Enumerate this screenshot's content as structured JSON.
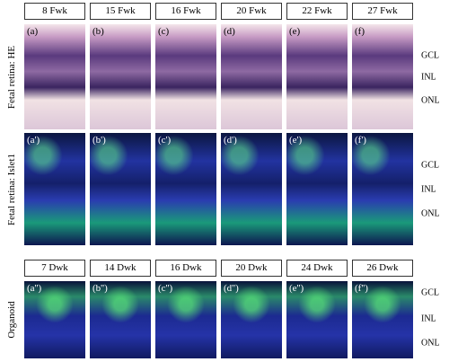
{
  "header_rows": [
    [
      "8 Fwk",
      "15 Fwk",
      "16 Fwk",
      "20 Fwk",
      "22 Fwk",
      "27 Fwk"
    ],
    [
      "7 Dwk",
      "14 Dwk",
      "16 Dwk",
      "20 Dwk",
      "24 Dwk",
      "26 Dwk"
    ]
  ],
  "rows": [
    {
      "label": "Fetal retina: HE",
      "panels": [
        "(a)",
        "(b)",
        "(c)",
        "(d)",
        "(e)",
        "(f)"
      ],
      "layers": [
        "GCL",
        "INL",
        "ONL"
      ]
    },
    {
      "label": "Fetal retina: Islet1",
      "panels": [
        "(a')",
        "(b')",
        "(c')",
        "(d')",
        "(e')",
        "(f')"
      ],
      "layers": [
        "GCL",
        "INL",
        "ONL"
      ]
    },
    {
      "label": "Organoid",
      "panels": [
        "(a'')",
        "(b'')",
        "(c'')",
        "(d'')",
        "(e'')",
        "(f'')"
      ],
      "layers": [
        "GCL",
        "INL",
        "ONL"
      ]
    }
  ]
}
